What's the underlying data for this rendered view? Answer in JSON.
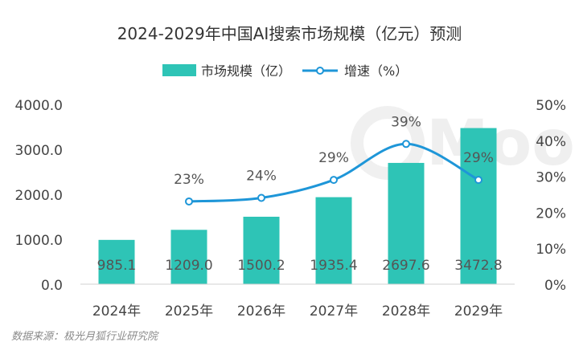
{
  "chart_data": {
    "type": "bar",
    "title": "2024-2029年中国AI搜索市场规模（亿元）预测",
    "categories": [
      "2024年",
      "2025年",
      "2026年",
      "2027年",
      "2028年",
      "2029年"
    ],
    "series": [
      {
        "name": "市场规模（亿）",
        "type": "bar",
        "axis": "left",
        "values": [
          985.1,
          1209.0,
          1500.2,
          1935.4,
          2697.6,
          3472.8
        ],
        "labels": [
          "985.1",
          "1209.0",
          "1500.2",
          "1935.4",
          "2697.6",
          "3472.8"
        ]
      },
      {
        "name": "增速（%）",
        "type": "line",
        "axis": "right",
        "values": [
          null,
          23,
          24,
          29,
          39,
          29
        ],
        "labels": [
          "",
          "23%",
          "24%",
          "29%",
          "39%",
          "29%"
        ]
      }
    ],
    "ylim": [
      0,
      4000
    ],
    "y_ticks": [
      "0.0",
      "1000.0",
      "2000.0",
      "3000.0",
      "4000.0"
    ],
    "y2lim": [
      0,
      50
    ],
    "y2_ticks": [
      "0%",
      "10%",
      "20%",
      "30%",
      "40%",
      "50%"
    ],
    "grid": false,
    "legend": "top-center",
    "colors": {
      "bar": "#2ec4b6",
      "line": "#1e96d8",
      "text": "#444444"
    }
  },
  "watermark": "Moo",
  "source": "数据来源：极光月狐行业研究院"
}
